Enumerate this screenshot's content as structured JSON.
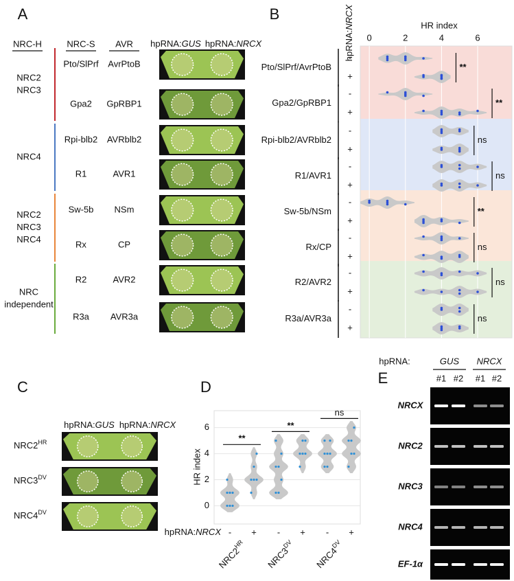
{
  "panel_a": {
    "label": "A",
    "headers": {
      "nrc_h": "NRC-H",
      "nrc_s": "NRC-S",
      "avr": "AVR",
      "gus": {
        "prefix": "hpRNA:",
        "gene": "GUS"
      },
      "nrcx": {
        "prefix": "hpRNA:",
        "gene": "NRCX"
      }
    },
    "groups": [
      {
        "lines": [
          "NRC2",
          "NRC3"
        ],
        "color": "#c1272d",
        "rows": [
          {
            "nrc_s": "Pto/SlPrf",
            "avr": "AvrPtoB"
          },
          {
            "nrc_s": "Gpa2",
            "avr": "GpRBP1"
          }
        ]
      },
      {
        "lines": [
          "NRC4"
        ],
        "color": "#4a78c2",
        "rows": [
          {
            "nrc_s": "Rpi-blb2",
            "avr": "AVRblb2"
          },
          {
            "nrc_s": "R1",
            "avr": "AVR1"
          }
        ]
      },
      {
        "lines": [
          "NRC2",
          "NRC3",
          "NRC4"
        ],
        "color": "#e8853a",
        "rows": [
          {
            "nrc_s": "Sw-5b",
            "avr": "NSm"
          },
          {
            "nrc_s": "Rx",
            "avr": "CP"
          }
        ]
      },
      {
        "lines": [
          "NRC",
          "independent"
        ],
        "color": "#6aab3c",
        "rows": [
          {
            "nrc_s": "R2",
            "avr": "AVR2"
          },
          {
            "nrc_s": "R3a",
            "avr": "AVR3a"
          }
        ]
      }
    ]
  },
  "chart_data": [
    {
      "type": "violin",
      "label": "B",
      "row_axis_label": {
        "prefix": "hpRNA:",
        "gene": "NRCX"
      },
      "x_label": "HR index",
      "xlim": [
        -0.5,
        7.9
      ],
      "xticks": [
        0,
        2,
        4,
        6
      ],
      "conditions": [
        "-",
        "+"
      ],
      "violin_color": "#c9c9c9",
      "point_color": "#2d50d6",
      "band_colors": [
        "#f9dcd8",
        "#f9dcd8",
        "#dfe7f7",
        "#dfe7f7",
        "#fbe6d9",
        "#fbe6d9",
        "#e4efdc",
        "#e4efdc"
      ],
      "groups": [
        {
          "name": "Pto/SlPrf/AvrPtoB",
          "minus": [
            1,
            1,
            1,
            2,
            2,
            2,
            2,
            3
          ],
          "plus": [
            3,
            3,
            4,
            4,
            4,
            4,
            4
          ],
          "significance": "**"
        },
        {
          "name": "Gpa2/GpRBP1",
          "minus": [
            1,
            2,
            2,
            2,
            2,
            3
          ],
          "plus": [
            3,
            4,
            4,
            4,
            5,
            5,
            6
          ],
          "significance": "**"
        },
        {
          "name": "Rpi-blb2/AVRblb2",
          "minus": [
            4,
            4,
            4,
            5,
            5
          ],
          "plus": [
            4,
            4,
            5,
            5,
            5
          ],
          "significance": "ns"
        },
        {
          "name": "R1/AVR1",
          "minus": [
            4,
            4,
            5,
            5,
            6
          ],
          "plus": [
            4,
            4,
            5,
            5,
            6
          ],
          "significance": "ns"
        },
        {
          "name": "Sw-5b/NSm",
          "minus": [
            0,
            0,
            1,
            1,
            1,
            2
          ],
          "plus": [
            3,
            3,
            3,
            4,
            4,
            5
          ],
          "significance": "**"
        },
        {
          "name": "Rx/CP",
          "minus": [
            3,
            4,
            4,
            4,
            5
          ],
          "plus": [
            3,
            4,
            4,
            5,
            5
          ],
          "significance": "ns"
        },
        {
          "name": "R2/AVR2",
          "minus": [
            3,
            4,
            4,
            5,
            6
          ],
          "plus": [
            3,
            4,
            5,
            5,
            6
          ],
          "significance": "ns"
        },
        {
          "name": "R3a/AVR3a",
          "minus": [
            4,
            4,
            5,
            5
          ],
          "plus": [
            4,
            4,
            4,
            5,
            5
          ],
          "significance": "ns"
        }
      ]
    },
    {
      "type": "violin",
      "label": "D",
      "y_label": "HR index",
      "ylim": [
        -1.4,
        7.3
      ],
      "yticks": [
        0,
        2,
        4,
        6
      ],
      "x_label": {
        "prefix": "hpRNA:",
        "gene": "NRCX"
      },
      "conditions": [
        "-",
        "+"
      ],
      "violin_color": "#c9c9c9",
      "point_color": "#2d8fd6",
      "groups": [
        {
          "name": {
            "base": "NRC2",
            "sup": "HR"
          },
          "minus": [
            0,
            0,
            0,
            1,
            1,
            1,
            2
          ],
          "plus": [
            1,
            2,
            2,
            2,
            3,
            4
          ],
          "significance": "**"
        },
        {
          "name": {
            "base": "NRC3",
            "sup": "DV"
          },
          "minus": [
            1,
            1,
            2,
            3,
            3,
            4,
            5
          ],
          "plus": [
            3,
            4,
            4,
            4,
            5,
            5
          ],
          "significance": "**"
        },
        {
          "name": {
            "base": "NRC4",
            "sup": "DV"
          },
          "minus": [
            3,
            3,
            4,
            4,
            4,
            5,
            5
          ],
          "plus": [
            3,
            4,
            4,
            5,
            5,
            6
          ],
          "significance": "ns"
        }
      ]
    }
  ],
  "panel_c": {
    "label": "C",
    "headers": [
      {
        "prefix": "hpRNA:",
        "gene": "GUS"
      },
      {
        "prefix": "hpRNA:",
        "gene": "NRCX"
      }
    ],
    "rows": [
      {
        "base": "NRC2",
        "sup": "HR"
      },
      {
        "base": "NRC3",
        "sup": "DV"
      },
      {
        "base": "NRC4",
        "sup": "DV"
      }
    ]
  },
  "panel_e": {
    "label": "E",
    "prefix": "hpRNA:",
    "treatments": [
      "GUS",
      "NRCX"
    ],
    "lanes": [
      "#1",
      "#2",
      "#1",
      "#2"
    ],
    "genes": [
      "NRCX",
      "NRC2",
      "NRC3",
      "NRC4",
      "EF-1α"
    ]
  }
}
